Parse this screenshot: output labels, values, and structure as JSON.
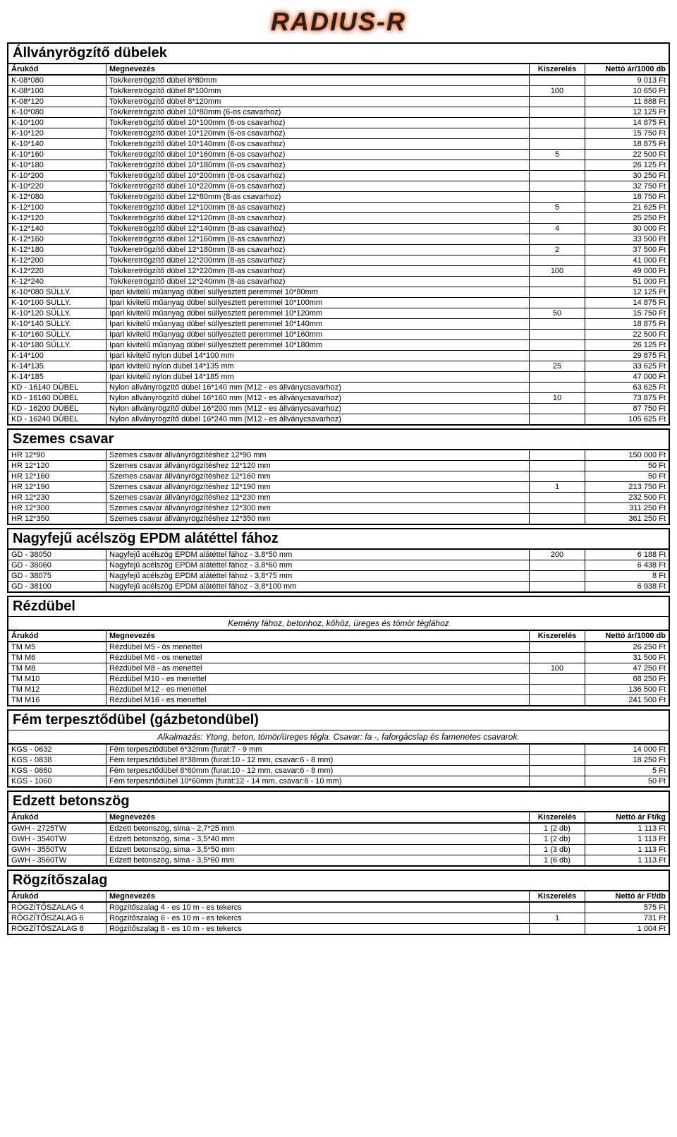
{
  "logo": "RADIUS-R",
  "sections": [
    {
      "title": "Állványrögzítő dübelek",
      "note": null,
      "headers": [
        "Árukód",
        "Megnevezés",
        "Kiszerelés",
        "Nettó ár/1000 db"
      ],
      "rows": [
        [
          "K-08*080",
          "Tok/keretrögzítő dübel 8*80mm",
          "",
          "9 013 Ft"
        ],
        [
          "K-08*100",
          "Tok/keretrögzítő dübel 8*100mm",
          "100",
          "10 650 Ft"
        ],
        [
          "K-08*120",
          "Tok/keretrögzítő dübel 8*120mm",
          "",
          "11 888 Ft"
        ],
        [
          "K-10*080",
          "Tok/keretrögzítő dübel 10*80mm (6-os csavarhoz)",
          "",
          "12 125 Ft"
        ],
        [
          "K-10*100",
          "Tok/keretrögzítő dübel 10*100mm (6-os csavarhoz)",
          "",
          "14 875 Ft"
        ],
        [
          "K-10*120",
          "Tok/keretrögzítő dübel 10*120mm (6-os csavarhoz)",
          "",
          "15 750 Ft"
        ],
        [
          "K-10*140",
          "Tok/keretrögzítő dübel 10*140mm (6-os csavarhoz)",
          "",
          "18 875 Ft"
        ],
        [
          "K-10*160",
          "Tok/keretrögzítő dübel 10*160mm (6-os csavarhoz)",
          "5",
          "22 500 Ft"
        ],
        [
          "K-10*180",
          "Tok/keretrögzítő dübel 10*180mm (6-os csavarhoz)",
          "",
          "26 125 Ft"
        ],
        [
          "K-10*200",
          "Tok/keretrögzítő dübel 10*200mm (6-os csavarhoz)",
          "",
          "30 250 Ft"
        ],
        [
          "K-10*220",
          "Tok/keretrögzítő dübel 10*220mm (6-os csavarhoz)",
          "",
          "32 750 Ft"
        ],
        [
          "K-12*080",
          "Tok/keretrögzítő dübel 12*80mm (8-as csavarhoz)",
          "",
          "18 750 Ft"
        ],
        [
          "K-12*100",
          "Tok/keretrögzítő dübel 12*100mm (8-as csavarhoz)",
          "5",
          "21 625 Ft"
        ],
        [
          "K-12*120",
          "Tok/keretrögzítő dübel 12*120mm (8-as csavarhoz)",
          "",
          "25 250 Ft"
        ],
        [
          "K-12*140",
          "Tok/keretrögzítő dübel 12*140mm (8-as csavarhoz)",
          "4",
          "30 000 Ft"
        ],
        [
          "K-12*160",
          "Tok/keretrögzítő dübel 12*160mm (8-as csavarhoz)",
          "",
          "33 500 Ft"
        ],
        [
          "K-12*180",
          "Tok/keretrögzítő dübel 12*180mm (8-as csavarhoz)",
          "2",
          "37 500 Ft"
        ],
        [
          "K-12*200",
          "Tok/keretrögzítő dübel 12*200mm (8-as csavarhoz)",
          "",
          "41 000 Ft"
        ],
        [
          "K-12*220",
          "Tok/keretrögzítő dübel 12*220mm (8-as csavarhoz)",
          "100",
          "49 000 Ft"
        ],
        [
          "K-12*240",
          "Tok/keretrögzítő dübel 12*240mm (8-as csavarhoz)",
          "",
          "51 000 Ft"
        ],
        [
          "K-10*080 SÜLLY.",
          "Ipari kivitelű műanyag dübel süllyesztett peremmel 10*80mm",
          "",
          "12 125 Ft"
        ],
        [
          "K-10*100 SÜLLY.",
          "Ipari kivitelű műanyag dübel süllyesztett peremmel 10*100mm",
          "",
          "14 875 Ft"
        ],
        [
          "K-10*120 SÜLLY.",
          "Ipari kivitelű műanyag dübel süllyesztett peremmel 10*120mm",
          "50",
          "15 750 Ft"
        ],
        [
          "K-10*140 SÜLLY.",
          "Ipari kivitelű műanyag dübel süllyesztett peremmel 10*140mm",
          "",
          "18 875 Ft"
        ],
        [
          "K-10*160 SÜLLY.",
          "Ipari kivitelű műanyag dübel süllyesztett peremmel 10*160mm",
          "",
          "22 500 Ft"
        ],
        [
          "K-10*180 SÜLLY.",
          "Ipari kivitelű műanyag dübel süllyesztett peremmel 10*180mm",
          "",
          "26 125 Ft"
        ],
        [
          "K-14*100",
          "Ipari kivitelű nylon dübel 14*100 mm",
          "",
          "29 875 Ft"
        ],
        [
          "K-14*135",
          "Ipari kivitelű nylon dübel 14*135 mm",
          "25",
          "33 625 Ft"
        ],
        [
          "K-14*185",
          "Ipari kivitelű nylon dübel 14*185 mm",
          "",
          "47 000 Ft"
        ],
        [
          "KD - 16140 DÜBEL",
          "Nylon allványrögzítő dübel 16*140 mm (M12 - es állványcsavarhoz)",
          "",
          "63 625 Ft"
        ],
        [
          "KD - 16160 DÜBEL",
          "Nylon allványrögzítő dübel 16*160 mm (M12 - es állványcsavarhoz)",
          "10",
          "73 875 Ft"
        ],
        [
          "KD - 16200 DÜBEL",
          "Nylon allványrögzítő dübel 16*200 mm (M12 - es állványcsavarhoz)",
          "",
          "87 750 Ft"
        ],
        [
          "KD - 16240 DÜBEL",
          "Nylon allványrögzítő dübel 16*240 mm (M12 - es állványcsavarhoz)",
          "",
          "105 625 Ft"
        ]
      ]
    },
    {
      "title": "Szemes csavar",
      "note": null,
      "headers": null,
      "rows": [
        [
          "HR 12*90",
          "Szemes csavar állványrögzítéshez 12*90 mm",
          "",
          "150 000 Ft"
        ],
        [
          "HR 12*120",
          "Szemes csavar állványrögzítéshez 12*120 mm",
          "",
          "50 Ft"
        ],
        [
          "HR 12*160",
          "Szemes csavar állványrögzítéshez 12*160 mm",
          "",
          "50 Ft"
        ],
        [
          "HR 12*190",
          "Szemes csavar állványrögzítéshez 12*190 mm",
          "1",
          "213 750 Ft"
        ],
        [
          "HR 12*230",
          "Szemes csavar állványrögzítéshez 12*230 mm",
          "",
          "232 500 Ft"
        ],
        [
          "HR 12*300",
          "Szemes csavar állványrögzítéshez 12*300 mm",
          "",
          "311 250 Ft"
        ],
        [
          "HR 12*350",
          "Szemes csavar állványrögzítéshez 12*350 mm",
          "",
          "361 250 Ft"
        ]
      ]
    },
    {
      "title": "Nagyfejű acélszög EPDM alátéttel fához",
      "note": null,
      "headers": null,
      "rows": [
        [
          "GD - 38050",
          "Nagyfejű acélszög EPDM alátéttel fához  -  3,8*50 mm",
          "200",
          "6 188 Ft"
        ],
        [
          "GD - 38060",
          "Nagyfejű acélszög EPDM alátéttel fához  -  3,8*60 mm",
          "",
          "6 438 Ft"
        ],
        [
          "GD - 38075",
          "Nagyfejű acélszög EPDM alátéttel fához  -  3,8*75 mm",
          "",
          "8 Ft"
        ],
        [
          "GD - 38100",
          "Nagyfejű acélszög EPDM alátéttel fához  -  3,8*100 mm",
          "",
          "6 938 Ft"
        ]
      ]
    },
    {
      "title": "Rézdübel",
      "note": "Kemény fához, betonhoz, kőhöz, üreges és tömör téglához",
      "headers": [
        "Árukód",
        "Megnevezés",
        "Kiszerelés",
        "Nettó ár/1000 db"
      ],
      "rows": [
        [
          "TM M5",
          "Rézdübel M5 - ös menettel",
          "",
          "26 250 Ft"
        ],
        [
          "TM M6",
          "Rézdübel M6 - os menettel",
          "",
          "31 500 Ft"
        ],
        [
          "TM M8",
          "Rézdübel M8 - as menettel",
          "100",
          "47 250 Ft"
        ],
        [
          "TM M10",
          "Rézdübel M10 - es menettel",
          "",
          "68 250 Ft"
        ],
        [
          "TM M12",
          "Rézdübel M12 - es menettel",
          "",
          "136 500 Ft"
        ],
        [
          "TM M16",
          "Rézdübel M16 - es menettel",
          "",
          "241 500 Ft"
        ]
      ]
    },
    {
      "title": "Fém terpesztődübel (gázbetondübel)",
      "note": "Alkalmazás: Ytong, beton, tömör/üreges tégla. Csavar: fa -, faforgácslap és famenetes csavarok.",
      "headers": null,
      "rows": [
        [
          "KGS - 0632",
          "Fém terpesztődübel  6*32mm (furat:7 - 9 mm",
          "",
          "14 000 Ft"
        ],
        [
          "KGS - 0838",
          "Fém terpesztődübel  8*38mm (furat:10 - 12 mm, csavar:6 - 8 mm)",
          "",
          "18 250 Ft"
        ],
        [
          "KGS - 0860",
          "Fém terpesztődübel  8*60mm (furat:10 - 12 mm, csavar:6 - 8 mm)",
          "",
          "5 Ft"
        ],
        [
          "KGS - 1060",
          "Fém terpesztődübel 10*60mm (furat:12 - 14 mm, csavar:8 - 10 mm)",
          "",
          "50 Ft"
        ]
      ]
    },
    {
      "title": "Edzett betonszög",
      "note": null,
      "headers": [
        "Árukód",
        "Megnevezés",
        "Kiszerelés",
        "Nettó ár Ft/kg"
      ],
      "rows": [
        [
          "GWH - 2725TW",
          "Edzett betonszög, sima  -  2,7*25 mm",
          "1 (2 db)",
          "1 113 Ft"
        ],
        [
          "GWH - 3540TW",
          "Edzett betonszög, sima  -  3,5*40 mm",
          "1 (2 db)",
          "1 113 Ft"
        ],
        [
          "GWH - 3550TW",
          "Edzett betonszög, sima  -  3,5*50 mm",
          "1 (3 db)",
          "1 113 Ft"
        ],
        [
          "GWH - 3560TW",
          "Edzett betonszög, sima  -  3,5*60 mm",
          "1 (6 db)",
          "1 113 Ft"
        ]
      ]
    },
    {
      "title": "Rögzítőszalag",
      "note": null,
      "headers": [
        "Árukód",
        "Megnevezés",
        "Kiszerelés",
        "Nettó ár Ft/db"
      ],
      "rows": [
        [
          "RÖGZÍTŐSZALAG 4",
          "Rögzítőszalag 4 - es 10 m - es tekercs",
          "",
          "575 Ft"
        ],
        [
          "RÖGZÍTŐSZALAG 6",
          "Rögzítőszalag 6 - es 10 m - es tekercs",
          "1",
          "731 Ft"
        ],
        [
          "RÖGZÍTŐSZALAG 8",
          "Rögzítőszalag 8 - es 10 m - es tekercs",
          "",
          "1 004 Ft"
        ]
      ]
    }
  ]
}
